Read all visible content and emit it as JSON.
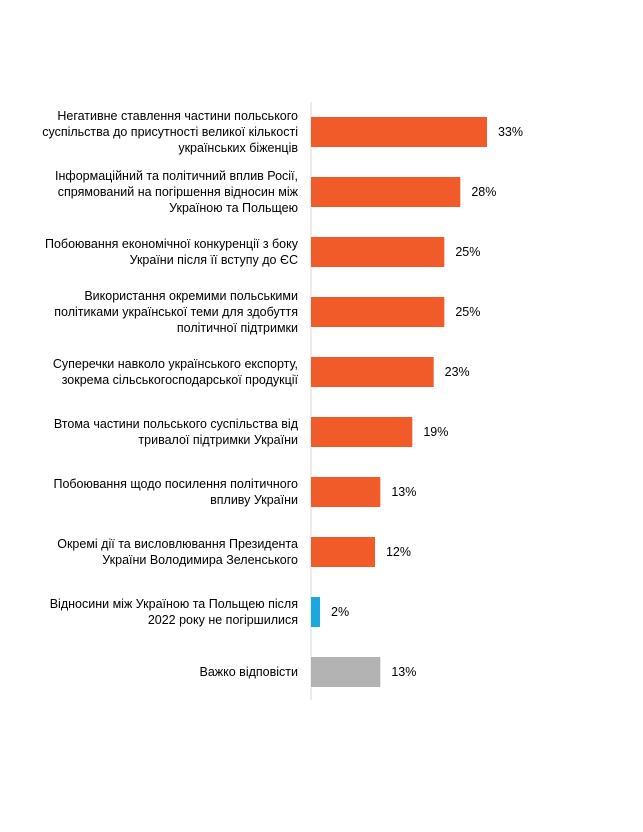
{
  "chart_data": {
    "type": "bar",
    "orientation": "horizontal",
    "title": "",
    "xlabel": "",
    "ylabel": "",
    "xlim": [
      0,
      100
    ],
    "grid": false,
    "legend": "none",
    "value_suffix": "%",
    "colors": {
      "primary": "#F15A29",
      "positive": "#1BA8E0",
      "neutral": "#B3B3B3",
      "axis": "#D9D9D9"
    },
    "categories": [
      "Негативне ставлення частини польського суспільства до присутності великої кількості українських біженців",
      "Інформаційний та політичний вплив Росії, спрямований на погіршення відносин між Україною та Польщею",
      "Побоювання економічної конкуренції з боку України після її вступу до ЄС",
      "Використання окремими польськими політиками української теми для здобуття політичної підтримки",
      "Суперечки навколо українського експорту, зокрема сільськогосподарської продукції",
      "Втома частини польського суспільства від тривалої підтримки України",
      "Побоювання щодо посилення політичного впливу України",
      "Окремі дії та висловлювання Президента України Володимира Зеленського",
      "Відносини між Україною та Польщею після 2022 року не погіршилися",
      "Важко відповісти"
    ],
    "values": [
      33,
      28,
      25,
      25,
      23,
      19,
      13,
      12,
      2,
      13
    ],
    "bar_colors": [
      "#F15A29",
      "#F15A29",
      "#F15A29",
      "#F15A29",
      "#F15A29",
      "#F15A29",
      "#F15A29",
      "#F15A29",
      "#1BA8E0",
      "#B3B3B3"
    ]
  }
}
